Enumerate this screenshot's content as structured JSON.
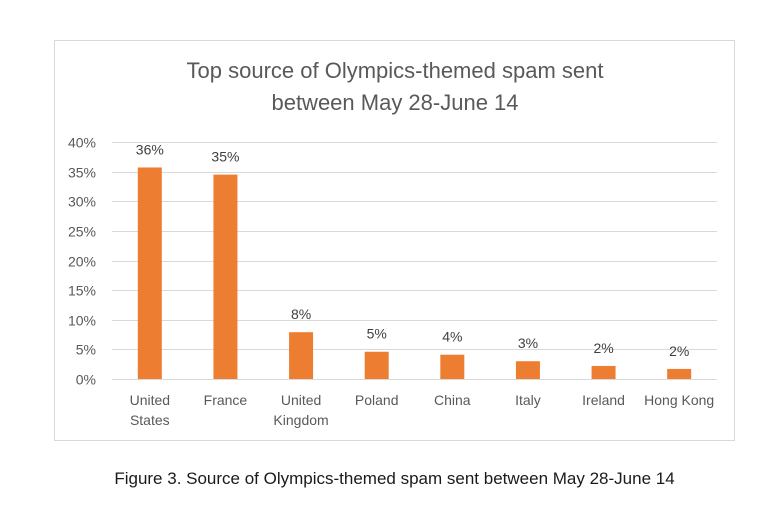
{
  "chart_data": {
    "type": "bar",
    "title": [
      "Top source of Olympics-themed spam sent",
      "between May 28-June 14"
    ],
    "categories": [
      [
        "United",
        "States"
      ],
      [
        "France"
      ],
      [
        "United",
        "Kingdom"
      ],
      [
        "Poland"
      ],
      [
        "China"
      ],
      [
        "Italy"
      ],
      [
        "Ireland"
      ],
      [
        "Hong Kong"
      ]
    ],
    "values": [
      36,
      35,
      8,
      5,
      4,
      3,
      2,
      2
    ],
    "data_labels": [
      "36%",
      "35%",
      "8%",
      "5%",
      "4%",
      "3%",
      "2%",
      "2%"
    ],
    "plotted_values": [
      35.7,
      34.5,
      7.9,
      4.6,
      4.1,
      3.0,
      2.2,
      1.7
    ],
    "ylim": [
      0,
      40
    ],
    "yticks": [
      0,
      5,
      10,
      15,
      20,
      25,
      30,
      35,
      40
    ],
    "ytick_labels": [
      "0%",
      "5%",
      "10%",
      "15%",
      "20%",
      "25%",
      "30%",
      "35%",
      "40%"
    ],
    "xlabel": "",
    "ylabel": "",
    "grid": true,
    "legend": "none",
    "bar_color": "#ED7D31",
    "grid_color": "#D9D9D9",
    "text_color": "#595959"
  },
  "caption": "Figure 3. Source of Olympics-themed spam sent between May 28-June 14"
}
